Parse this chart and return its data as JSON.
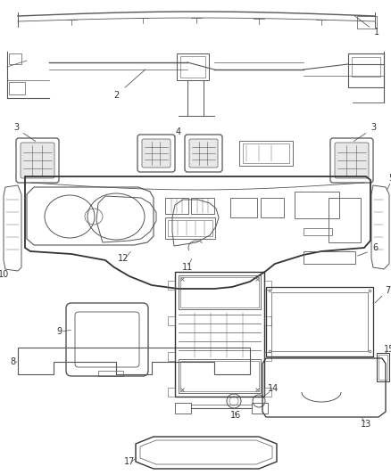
{
  "bg_color": "#ffffff",
  "lc": "#555555",
  "lc_dark": "#333333",
  "lw_main": 0.9,
  "lw_thin": 0.5,
  "lw_thick": 1.2,
  "label_fs": 7.0,
  "figw": 4.38,
  "figh": 5.33,
  "dpi": 100
}
